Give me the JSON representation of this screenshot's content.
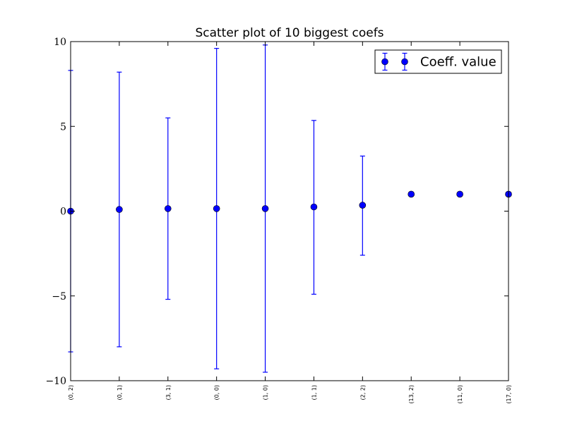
{
  "chart_data": {
    "type": "scatter",
    "title": "Scatter plot of 10 biggest coefs",
    "xlabel": "",
    "ylabel": "",
    "categories": [
      "(0, 2)",
      "(0, 1)",
      "(3, 1)",
      "(0, 0)",
      "(1, 0)",
      "(1, 1)",
      "(2, 2)",
      "(13, 2)",
      "(11, 0)",
      "(17, 0)"
    ],
    "series": [
      {
        "name": "Coeff. value",
        "color": "#0000ff",
        "values": [
          0.0,
          0.1,
          0.15,
          0.15,
          0.15,
          0.25,
          0.35,
          1.0,
          1.0,
          1.0
        ],
        "err_low": [
          -8.3,
          -8.0,
          -5.2,
          -9.3,
          -9.5,
          -4.9,
          -2.6,
          null,
          null,
          null
        ],
        "err_high": [
          8.3,
          8.2,
          5.5,
          9.6,
          9.8,
          5.35,
          3.25,
          null,
          null,
          null
        ]
      }
    ],
    "ylim": [
      -10,
      10
    ],
    "yticks": [
      -10,
      -5,
      0,
      5,
      10
    ],
    "ytick_labels": [
      "−10",
      "−5",
      "0",
      "5",
      "10"
    ],
    "legend_position": "top-right",
    "grid": false
  }
}
